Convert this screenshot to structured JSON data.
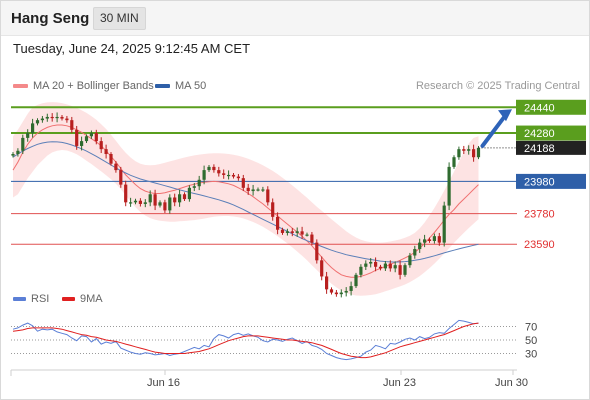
{
  "header": {
    "title": "Hang Seng",
    "timeframe": "30 MIN"
  },
  "datetime": "Tuesday, June 24, 2025 9:12:45 AM CET",
  "legend": {
    "ma20": {
      "label": "MA 20 + Bollinger Bands",
      "color": "#f4898a"
    },
    "ma50": {
      "label": "MA 50",
      "color": "#2e5fa8"
    },
    "credit": "Research © 2025 Trading Central"
  },
  "rsi_legend": {
    "rsi": {
      "label": "RSI",
      "color": "#5b7fd6"
    },
    "ma9": {
      "label": "9MA",
      "color": "#e02020"
    }
  },
  "chart_data": [
    {
      "type": "candlestick",
      "ylim": [
        23430,
        24510
      ],
      "x_ticks": [
        "Jun 16",
        "Jun 23",
        "Jun 30"
      ],
      "last_price": 24188,
      "levels": [
        {
          "value": 24440,
          "label": "24440",
          "color": "#5a9e1e",
          "kind": "resistance"
        },
        {
          "value": 24280,
          "label": "24280",
          "color": "#5a9e1e",
          "kind": "resistance"
        },
        {
          "value": 23980,
          "label": "23980",
          "color": "#2e5fa8",
          "kind": "pivot"
        },
        {
          "value": 23780,
          "label": "23780",
          "color": "#e05050",
          "kind": "support"
        },
        {
          "value": 23590,
          "label": "23590",
          "color": "#e05050",
          "kind": "support"
        }
      ],
      "close": [
        24150,
        24170,
        24250,
        24280,
        24340,
        24360,
        24370,
        24380,
        24375,
        24380,
        24370,
        24360,
        24300,
        24200,
        24230,
        24260,
        24280,
        24230,
        24180,
        24150,
        24090,
        24050,
        23960,
        23850,
        23850,
        23860,
        23840,
        23850,
        23900,
        23830,
        23850,
        23800,
        23880,
        23850,
        23900,
        23870,
        23940,
        23950,
        23990,
        24050,
        24070,
        24050,
        24030,
        24020,
        24020,
        24010,
        24000,
        23940,
        23920,
        23930,
        23930,
        23930,
        23850,
        23760,
        23680,
        23660,
        23670,
        23660,
        23670,
        23650,
        23650,
        23600,
        23490,
        23390,
        23310,
        23290,
        23280,
        23290,
        23300,
        23330,
        23400,
        23450,
        23470,
        23480,
        23450,
        23440,
        23470,
        23440,
        23460,
        23400,
        23460,
        23520,
        23560,
        23600,
        23620,
        23610,
        23640,
        23600,
        23830,
        24070,
        24130,
        24180,
        24170,
        24180,
        24130,
        24188
      ],
      "ma20": [
        24050,
        24100,
        24160,
        24210,
        24250,
        24280,
        24300,
        24315,
        24325,
        24330,
        24330,
        24325,
        24315,
        24300,
        24285,
        24265,
        24245,
        24225,
        24200,
        24170,
        24135,
        24100,
        24060,
        24020,
        23990,
        23960,
        23935,
        23920,
        23910,
        23905,
        23905,
        23910,
        23918,
        23925,
        23935,
        23945,
        23955,
        23962,
        23970,
        23975,
        23978,
        23980,
        23978,
        23972,
        23965,
        23955,
        23940,
        23925,
        23905,
        23885,
        23862,
        23840,
        23815,
        23790,
        23765,
        23740,
        23715,
        23690,
        23665,
        23640,
        23610,
        23580,
        23545,
        23510,
        23475,
        23445,
        23420,
        23400,
        23390,
        23385,
        23385,
        23390,
        23400,
        23412,
        23428,
        23440,
        23452,
        23465,
        23478,
        23490,
        23505,
        23520,
        23540,
        23565,
        23595,
        23628,
        23663,
        23700,
        23740,
        23775,
        23805,
        23840,
        23870,
        23900,
        23930,
        23960
      ],
      "ma50": [
        24130,
        24150,
        24168,
        24184,
        24198,
        24210,
        24218,
        24224,
        24226,
        24225,
        24222,
        24215,
        24206,
        24195,
        24182,
        24168,
        24152,
        24136,
        24118,
        24100,
        24082,
        24064,
        24047,
        24032,
        24018,
        24006,
        23995,
        23986,
        23978,
        23970,
        23962,
        23953,
        23945,
        23936,
        23928,
        23920,
        23912,
        23905,
        23898,
        23890,
        23882,
        23874,
        23866,
        23856,
        23846,
        23834,
        23820,
        23806,
        23790,
        23775,
        23760,
        23745,
        23730,
        23715,
        23700,
        23685,
        23670,
        23655,
        23640,
        23625,
        23612,
        23600,
        23588,
        23576,
        23564,
        23553,
        23543,
        23534,
        23525,
        23518,
        23512,
        23506,
        23500,
        23495,
        23490,
        23485,
        23482,
        23480,
        23479,
        23480,
        23482,
        23485,
        23490,
        23495,
        23502,
        23510,
        23518,
        23527,
        23536,
        23545,
        23553,
        23561,
        23569,
        23576,
        23583,
        23590
      ],
      "bb_upper": [
        24260,
        24300,
        24350,
        24400,
        24440,
        24455,
        24465,
        24470,
        24472,
        24470,
        24466,
        24458,
        24448,
        24436,
        24422,
        24405,
        24385,
        24362,
        24335,
        24305,
        24270,
        24232,
        24193,
        24158,
        24128,
        24105,
        24090,
        24082,
        24080,
        24082,
        24088,
        24096,
        24104,
        24112,
        24120,
        24128,
        24135,
        24141,
        24146,
        24150,
        24153,
        24155,
        24155,
        24153,
        24150,
        24145,
        24139,
        24131,
        24120,
        24108,
        24095,
        24080,
        24063,
        24045,
        24025,
        24003,
        23980,
        23955,
        23930,
        23904,
        23878,
        23850,
        23823,
        23798,
        23772,
        23745,
        23720,
        23695,
        23670,
        23650,
        23632,
        23618,
        23608,
        23602,
        23600,
        23600,
        23602,
        23607,
        23613,
        23620,
        23630,
        23643,
        23660,
        23688,
        23725,
        23768,
        23815,
        23867,
        23922,
        23979,
        24040,
        24102,
        24160,
        24215,
        24250,
        24260
      ],
      "bb_lower": [
        23880,
        23900,
        23950,
        24000,
        24040,
        24080,
        24110,
        24140,
        24160,
        24170,
        24175,
        24172,
        24162,
        24148,
        24130,
        24108,
        24088,
        24065,
        24042,
        24018,
        23993,
        23965,
        23932,
        23893,
        23855,
        23820,
        23790,
        23768,
        23752,
        23742,
        23736,
        23732,
        23730,
        23730,
        23732,
        23734,
        23737,
        23740,
        23744,
        23749,
        23755,
        23760,
        23763,
        23765,
        23765,
        23762,
        23757,
        23750,
        23740,
        23728,
        23714,
        23698,
        23680,
        23660,
        23640,
        23618,
        23595,
        23570,
        23545,
        23518,
        23490,
        23460,
        23430,
        23400,
        23372,
        23345,
        23322,
        23302,
        23288,
        23278,
        23272,
        23270,
        23272,
        23275,
        23280,
        23288,
        23298,
        23308,
        23318,
        23328,
        23340,
        23355,
        23372,
        23392,
        23416,
        23442,
        23470,
        23500,
        23532,
        23565,
        23598,
        23630,
        23660,
        23690,
        23718,
        23745
      ],
      "projection": {
        "from": 24188,
        "to": 24440
      }
    },
    {
      "type": "line",
      "title": "RSI",
      "ylim": [
        10,
        90
      ],
      "y_ticks": [
        70,
        50,
        30
      ],
      "series": [
        {
          "name": "RSI",
          "values": [
            66,
            68,
            72,
            75,
            71,
            63,
            66,
            65,
            66,
            62,
            60,
            58,
            53,
            49,
            56,
            55,
            47,
            52,
            44,
            47,
            45,
            48,
            38,
            35,
            32,
            30,
            29,
            31,
            30,
            28,
            29,
            30,
            27,
            29,
            30,
            33,
            36,
            39,
            37,
            42,
            40,
            52,
            58,
            56,
            53,
            58,
            60,
            57,
            59,
            56,
            54,
            49,
            47,
            51,
            50,
            48,
            51,
            53,
            49,
            45,
            48,
            42,
            40,
            36,
            30,
            27,
            24,
            22,
            21,
            22,
            24,
            26,
            32,
            35,
            42,
            40,
            37,
            45,
            44,
            47,
            51,
            53,
            50,
            55,
            52,
            54,
            59,
            61,
            60,
            67,
            73,
            79,
            78,
            76,
            74,
            75
          ]
        },
        {
          "name": "9MA",
          "values": [
            63,
            64,
            65,
            67,
            68,
            68,
            68,
            68,
            68,
            67,
            66,
            64,
            62,
            60,
            58,
            57,
            55,
            54,
            52,
            50,
            49,
            48,
            46,
            44,
            42,
            40,
            38,
            36,
            34,
            32,
            31,
            30,
            30,
            30,
            30,
            30,
            31,
            32,
            33,
            35,
            37,
            40,
            43,
            46,
            49,
            51,
            53,
            55,
            56,
            56,
            56,
            55,
            54,
            53,
            52,
            51,
            50,
            50,
            49,
            48,
            47,
            46,
            44,
            42,
            39,
            36,
            33,
            30,
            28,
            26,
            25,
            24,
            24,
            25,
            27,
            29,
            31,
            34,
            37,
            40,
            42,
            44,
            46,
            48,
            50,
            52,
            54,
            56,
            58,
            61,
            64,
            67,
            70,
            72,
            74,
            75
          ]
        }
      ]
    }
  ]
}
